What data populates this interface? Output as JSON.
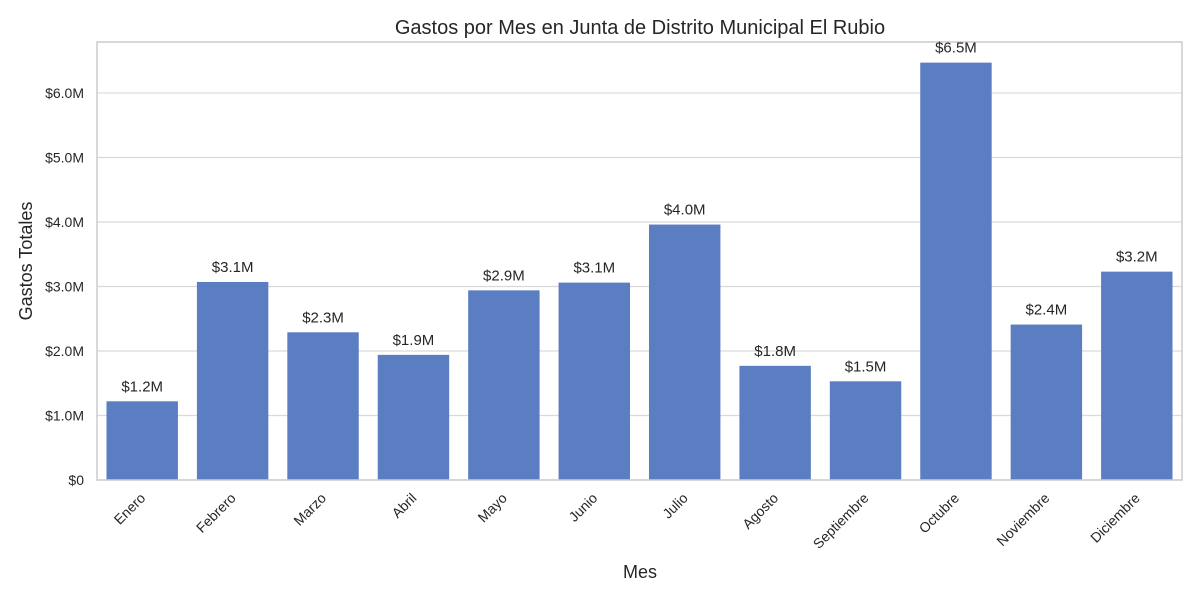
{
  "chart_data": {
    "type": "bar",
    "title": "Gastos por Mes en Junta de Distrito Municipal El Rubio",
    "xlabel": "Mes",
    "ylabel": "Gastos Totales",
    "categories": [
      "Enero",
      "Febrero",
      "Marzo",
      "Abril",
      "Mayo",
      "Junio",
      "Julio",
      "Agosto",
      "Septiembre",
      "Octubre",
      "Noviembre",
      "Diciembre"
    ],
    "values": [
      1.22,
      3.07,
      2.29,
      1.94,
      2.94,
      3.06,
      3.96,
      1.77,
      1.53,
      6.47,
      2.41,
      3.23
    ],
    "value_labels": [
      "$1.2M",
      "$3.1M",
      "$2.3M",
      "$1.9M",
      "$2.9M",
      "$3.1M",
      "$4.0M",
      "$1.8M",
      "$1.5M",
      "$6.5M",
      "$2.4M",
      "$3.2M"
    ],
    "value_unit": "millones USD",
    "yticks": [
      0,
      1,
      2,
      3,
      4,
      5,
      6
    ],
    "ytick_labels": [
      "$0",
      "$1.0M",
      "$2.0M",
      "$3.0M",
      "$4.0M",
      "$5.0M",
      "$6.0M"
    ],
    "ylim": [
      0,
      6.79
    ],
    "grid": true,
    "bar_color": "#5b7ec2",
    "grid_color": "#d9d9d9",
    "spine_color": "#cccccc",
    "text_color": "#262626"
  }
}
